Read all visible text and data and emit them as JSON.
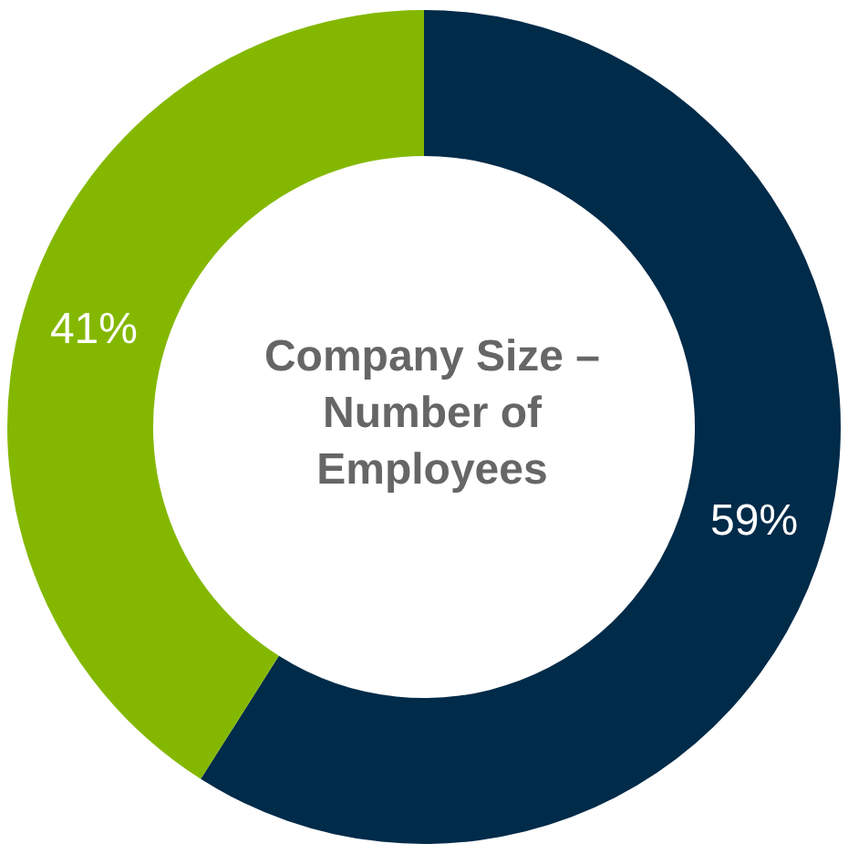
{
  "chart_data": {
    "type": "donut",
    "title": "Company Size – Number of Employees",
    "categories": [
      null,
      null
    ],
    "values": [
      59,
      41
    ],
    "colors": [
      "#002b49",
      "#84b800"
    ],
    "value_labels": [
      "59%",
      "41%"
    ],
    "legend": false
  }
}
